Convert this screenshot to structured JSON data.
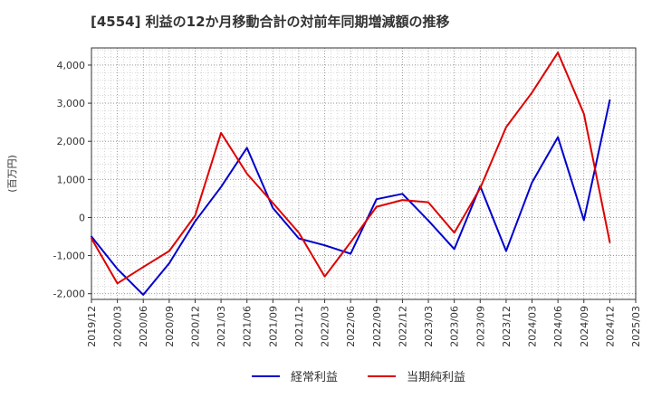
{
  "chart_data": {
    "type": "line",
    "title": "[4554]  利益の12か月移動合計の対前年同期増減額の推移",
    "ylabel": "(百万円)",
    "xlabel": "",
    "ylim": [
      -2150,
      4450
    ],
    "yticks": [
      4000,
      3000,
      2000,
      1000,
      0,
      -1000,
      -2000
    ],
    "ytick_labels": [
      "4,000",
      "3,000",
      "2,000",
      "1,000",
      "0",
      "-1,000",
      "-2,000"
    ],
    "grid": true,
    "legend_position": "bottom-center",
    "categories": [
      "2019/12",
      "2020/03",
      "2020/06",
      "2020/09",
      "2020/12",
      "2021/03",
      "2021/06",
      "2021/09",
      "2021/12",
      "2022/03",
      "2022/06",
      "2022/09",
      "2022/12",
      "2023/03",
      "2023/06",
      "2023/09",
      "2023/12",
      "2024/03",
      "2024/06",
      "2024/09",
      "2024/12",
      "2025/03"
    ],
    "series": [
      {
        "name": "経常利益",
        "color": "#0000cc",
        "values": [
          -500,
          -1350,
          -2030,
          -1200,
          -100,
          800,
          1830,
          250,
          -550,
          -730,
          -950,
          480,
          620,
          -80,
          -830,
          820,
          -880,
          920,
          2110,
          -70,
          3080,
          null
        ]
      },
      {
        "name": "当期純利益",
        "color": "#dd0000",
        "values": [
          -550,
          -1730,
          -1300,
          -880,
          50,
          2220,
          1150,
          380,
          -400,
          -1550,
          -650,
          280,
          460,
          400,
          -400,
          770,
          2370,
          3280,
          4330,
          2720,
          -650,
          null
        ]
      }
    ]
  }
}
